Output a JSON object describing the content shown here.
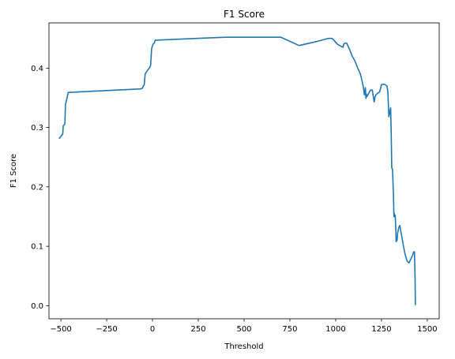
{
  "chart_data": {
    "type": "line",
    "title": "F1 Score",
    "xlabel": "Threshold",
    "ylabel": "F1 Score",
    "xlim": [
      -565,
      1565
    ],
    "ylim": [
      -0.022,
      0.4761
    ],
    "xticks": [
      -500,
      -250,
      0,
      250,
      500,
      750,
      1000,
      1250,
      1500
    ],
    "xtick_labels": [
      "−500",
      "−250",
      "0",
      "250",
      "500",
      "750",
      "1000",
      "1250",
      "1500"
    ],
    "yticks": [
      0.0,
      0.1,
      0.2,
      0.3,
      0.4
    ],
    "ytick_labels": [
      "0.0",
      "0.1",
      "0.2",
      "0.3",
      "0.4"
    ],
    "grid": false,
    "line_color": "#1f77b4",
    "series": [
      {
        "x": [
          -510,
          -500,
          -490,
          -487,
          -480,
          -478,
          -475,
          -470,
          -460,
          -65,
          -55,
          -50,
          -45,
          -40,
          -30,
          -15,
          -10,
          -5,
          0,
          5,
          10,
          15,
          400,
          700,
          800,
          900,
          960,
          980,
          990,
          1010,
          1040,
          1045,
          1050,
          1060,
          1075,
          1090,
          1105,
          1120,
          1135,
          1150,
          1157,
          1162,
          1165,
          1168,
          1170,
          1190,
          1200,
          1210,
          1215,
          1220,
          1230,
          1240,
          1250,
          1260,
          1270,
          1280,
          1285,
          1290,
          1293,
          1296,
          1300,
          1303,
          1306,
          1310,
          1315,
          1318,
          1320,
          1322,
          1325,
          1328,
          1330,
          1335,
          1338,
          1342,
          1345,
          1350,
          1360,
          1370,
          1380,
          1390,
          1400,
          1420,
          1425,
          1430,
          1433,
          1435
        ],
        "y": [
          0.281,
          0.285,
          0.289,
          0.303,
          0.305,
          0.307,
          0.338,
          0.345,
          0.359,
          0.365,
          0.366,
          0.37,
          0.372,
          0.39,
          0.395,
          0.401,
          0.405,
          0.432,
          0.438,
          0.441,
          0.442,
          0.447,
          0.452,
          0.452,
          0.438,
          0.445,
          0.45,
          0.45,
          0.447,
          0.44,
          0.435,
          0.441,
          0.442,
          0.442,
          0.432,
          0.42,
          0.412,
          0.4,
          0.39,
          0.37,
          0.355,
          0.367,
          0.349,
          0.356,
          0.352,
          0.363,
          0.363,
          0.343,
          0.352,
          0.355,
          0.358,
          0.36,
          0.372,
          0.373,
          0.372,
          0.37,
          0.359,
          0.318,
          0.322,
          0.328,
          0.333,
          0.29,
          0.232,
          0.23,
          0.19,
          0.15,
          0.155,
          0.15,
          0.152,
          0.13,
          0.108,
          0.11,
          0.122,
          0.128,
          0.132,
          0.135,
          0.118,
          0.1,
          0.085,
          0.075,
          0.072,
          0.085,
          0.09,
          0.091,
          0.05,
          0.001
        ]
      }
    ]
  }
}
